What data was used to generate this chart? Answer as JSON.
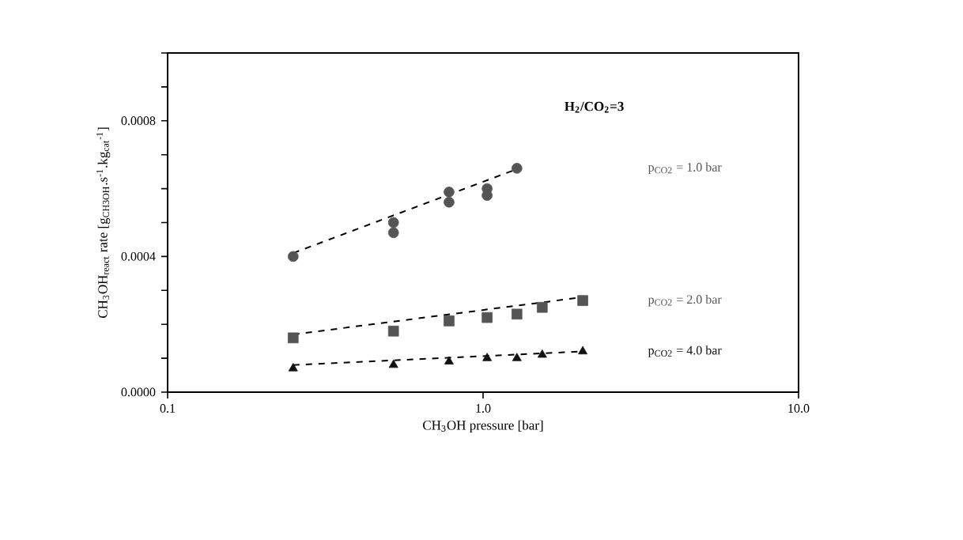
{
  "chart_data": {
    "type": "scatter",
    "xlabel": "CH$_{3}$OH pressure [bar]",
    "ylabel": "CH$_{3}$OH$_{react}$ rate [g$_{CH3OH}$.s$^{-1}$.kg$_{cat}$$^{-1}$]",
    "log": "x",
    "xlim": [
      0.1,
      10
    ],
    "ylim": [
      0,
      0.001
    ],
    "xticks": [
      {
        "value": 0.1,
        "label": "0.1"
      },
      {
        "value": 1,
        "label": "1.0"
      },
      {
        "value": 10,
        "label": "10.0"
      }
    ],
    "yticks": [
      {
        "value": 0,
        "label": "0.0000"
      },
      {
        "value": 0.0001,
        "label": null
      },
      {
        "value": 0.0002,
        "label": null
      },
      {
        "value": 0.0003,
        "label": null
      },
      {
        "value": 0.0004,
        "label": "0.0004"
      },
      {
        "value": 0.0005,
        "label": null
      },
      {
        "value": 0.0006,
        "label": null
      },
      {
        "value": 0.0007,
        "label": null
      },
      {
        "value": 0.0008,
        "label": "0.0008"
      },
      {
        "value": 0.0009,
        "label": null
      },
      {
        "value": 0.001,
        "label": null
      }
    ],
    "grid": false,
    "legend": false,
    "annotations": [
      "H$_{2}$/CO$_{2}$=3"
    ],
    "series": [
      {
        "name": "p$_{CO2}$ = 1.0  bar",
        "marker": "circle",
        "color": "#555555",
        "x": [
          0.25,
          0.52,
          0.52,
          0.78,
          0.78,
          1.03,
          1.03,
          1.28
        ],
        "values": [
          0.0004,
          0.0005,
          0.00047,
          0.00059,
          0.00056,
          0.0006,
          0.00058,
          0.00066
        ]
      },
      {
        "name": "p$_{CO2}$ = 2.0  bar",
        "marker": "square",
        "color": "#555555",
        "x": [
          0.25,
          0.52,
          0.78,
          1.03,
          1.28,
          1.54,
          2.07
        ],
        "values": [
          0.00016,
          0.00018,
          0.00021,
          0.00022,
          0.00023,
          0.00025,
          0.00027
        ]
      },
      {
        "name": "p$_{CO2}$ = 4.0  bar",
        "marker": "triangle",
        "color": "#111111",
        "x": [
          0.25,
          0.52,
          0.78,
          1.03,
          1.28,
          1.54,
          2.07
        ],
        "values": [
          7e-05,
          8e-05,
          9e-05,
          0.0001,
          0.0001,
          0.00011,
          0.00012
        ]
      },
      {
        "type": "line",
        "line_style": "dashed",
        "marker": "none",
        "color": "#000000",
        "x": [
          0.25,
          1.3
        ],
        "values": [
          0.00041,
          0.00066
        ]
      },
      {
        "type": "line",
        "line_style": "dashed",
        "marker": "none",
        "color": "#000000",
        "x": [
          0.25,
          2.07
        ],
        "values": [
          0.00017,
          0.00028
        ]
      },
      {
        "type": "line",
        "line_style": "dashed",
        "marker": "none",
        "color": "#000000",
        "x": [
          0.25,
          2.07
        ],
        "values": [
          8e-05,
          0.00012
        ]
      }
    ]
  }
}
